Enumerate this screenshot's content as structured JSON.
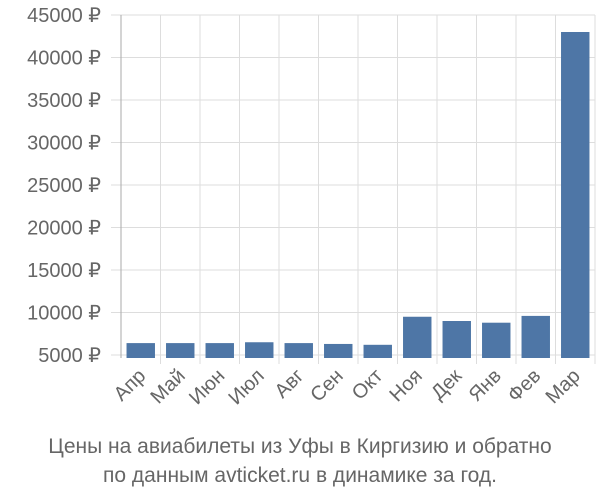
{
  "chart_data": {
    "type": "bar",
    "categories": [
      "Апр",
      "Май",
      "Июн",
      "Июл",
      "Авг",
      "Сен",
      "Окт",
      "Ноя",
      "Дек",
      "Янв",
      "Фев",
      "Мар"
    ],
    "values": [
      6400,
      6400,
      6400,
      6500,
      6400,
      6300,
      6200,
      9500,
      9000,
      8800,
      9600,
      43000
    ],
    "ylim": [
      4500,
      45000
    ],
    "yticks": [
      5000,
      10000,
      15000,
      20000,
      25000,
      30000,
      35000,
      40000,
      45000
    ],
    "ytick_labels": [
      "5000 ₽",
      "10000 ₽",
      "15000 ₽",
      "20000 ₽",
      "25000 ₽",
      "30000 ₽",
      "35000 ₽",
      "40000 ₽",
      "45000 ₽"
    ],
    "grid": true,
    "colors": {
      "bar": "#4e76a6",
      "grid": "#dddddd",
      "axis": "#aaaaaa",
      "text": "#666666"
    }
  },
  "caption": {
    "line1": "Цены на авиабилеты из Уфы в Киргизию и обратно",
    "line2": "по данным avticket.ru в динамике за год."
  }
}
